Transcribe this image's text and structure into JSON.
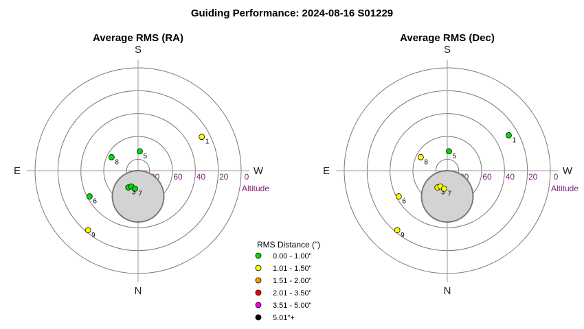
{
  "title": "Guiding Performance: 2024-08-16 S01229",
  "colors": {
    "ring": "#777777",
    "axis": "#999999",
    "blocked_fill": "#d3d3d3",
    "blocked_stroke": "#777777",
    "alt_text": "#7a1f7a"
  },
  "legend": {
    "title": "RMS Distance (\")",
    "items": [
      {
        "label": "0.00 - 1.00\"",
        "color": "#00dd00"
      },
      {
        "label": "1.01 - 1.50\"",
        "color": "#ffff00"
      },
      {
        "label": "1.51 - 2.00\"",
        "color": "#ff9900"
      },
      {
        "label": "2.01 - 3.50\"",
        "color": "#ee0000"
      },
      {
        "label": "3.51 - 5.00\"",
        "color": "#ee00ee"
      },
      {
        "label": "5.01\"+",
        "color": "#000000"
      }
    ]
  },
  "chart_data": [
    {
      "type": "scatter",
      "projection": "polar-sky",
      "title": "Average RMS (RA)",
      "compass": {
        "top": "S",
        "bottom": "N",
        "left": "E",
        "right": "W"
      },
      "altitude_ticks": [
        "80",
        "60",
        "40",
        "20",
        "0"
      ],
      "altitude_label": "Altitude",
      "blocked_region": {
        "azimuth_deg": 0,
        "altitude_from": 45,
        "altitude_to": 90
      },
      "points": [
        {
          "label": "1",
          "azimuth_deg": 242,
          "altitude_deg": 27,
          "color": "#ffff00"
        },
        {
          "label": "3",
          "azimuth_deg": 30,
          "altitude_deg": 73,
          "color": "#00dd00"
        },
        {
          "label": "",
          "azimuth_deg": 23,
          "altitude_deg": 75,
          "color": "#00dd00"
        },
        {
          "label": "7",
          "azimuth_deg": 10,
          "altitude_deg": 74,
          "color": "#00dd00"
        },
        {
          "label": "5",
          "azimuth_deg": 185,
          "altitude_deg": 73,
          "color": "#00dd00"
        },
        {
          "label": "6",
          "azimuth_deg": 62,
          "altitude_deg": 42,
          "color": "#00dd00"
        },
        {
          "label": "8",
          "azimuth_deg": 117,
          "altitude_deg": 64,
          "color": "#00dd00"
        },
        {
          "label": "9",
          "azimuth_deg": 40,
          "altitude_deg": 22,
          "color": "#ffff00"
        }
      ]
    },
    {
      "type": "scatter",
      "projection": "polar-sky",
      "title": "Average RMS (Dec)",
      "compass": {
        "top": "S",
        "bottom": "N",
        "left": "E",
        "right": "W"
      },
      "altitude_ticks": [
        "80",
        "60",
        "40",
        "20",
        "0"
      ],
      "altitude_label": "Altitude",
      "blocked_region": {
        "azimuth_deg": 0,
        "altitude_from": 45,
        "altitude_to": 90
      },
      "points": [
        {
          "label": "1",
          "azimuth_deg": 240,
          "altitude_deg": 28,
          "color": "#00dd00"
        },
        {
          "label": "3",
          "azimuth_deg": 30,
          "altitude_deg": 73,
          "color": "#ffff00"
        },
        {
          "label": "",
          "azimuth_deg": 23,
          "altitude_deg": 75,
          "color": "#ffff00"
        },
        {
          "label": "7",
          "azimuth_deg": 10,
          "altitude_deg": 74,
          "color": "#ffff00"
        },
        {
          "label": "5",
          "azimuth_deg": 185,
          "altitude_deg": 73,
          "color": "#00dd00"
        },
        {
          "label": "6",
          "azimuth_deg": 62,
          "altitude_deg": 42,
          "color": "#ffff00"
        },
        {
          "label": "8",
          "azimuth_deg": 117,
          "altitude_deg": 64,
          "color": "#ffff00"
        },
        {
          "label": "9",
          "azimuth_deg": 40,
          "altitude_deg": 22,
          "color": "#ffff00"
        }
      ]
    }
  ]
}
